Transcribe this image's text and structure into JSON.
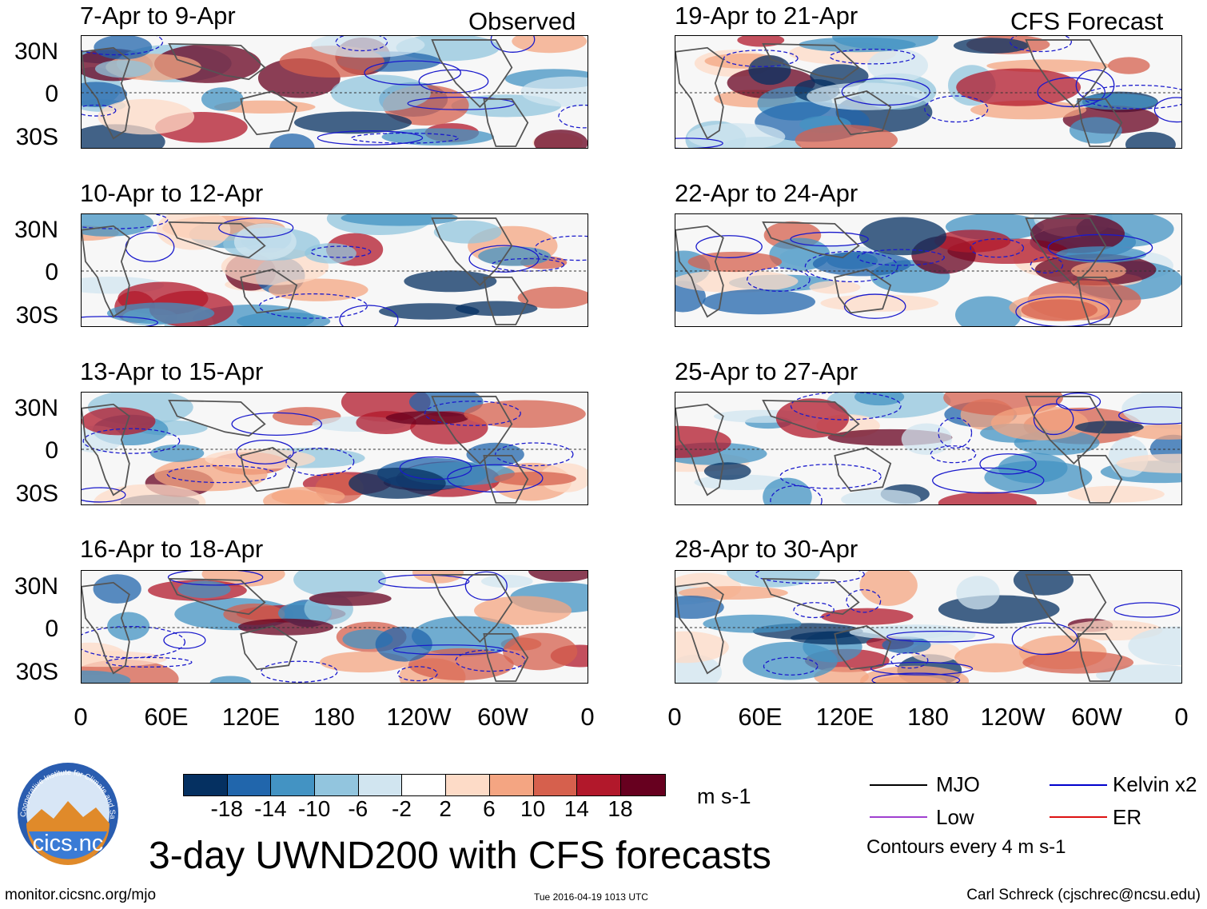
{
  "panels": {
    "observed_label": "Observed",
    "forecast_label": "CFS Forecast",
    "left": [
      {
        "title": "7-Apr to 9-Apr"
      },
      {
        "title": "10-Apr to 12-Apr"
      },
      {
        "title": "13-Apr to 15-Apr"
      },
      {
        "title": "16-Apr to 18-Apr"
      }
    ],
    "right": [
      {
        "title": "19-Apr to 21-Apr"
      },
      {
        "title": "22-Apr to 24-Apr"
      },
      {
        "title": "25-Apr to 27-Apr"
      },
      {
        "title": "28-Apr to 30-Apr"
      }
    ]
  },
  "axes": {
    "lat_labels": [
      "30N",
      "0",
      "30S"
    ],
    "lon_labels": [
      "0",
      "60E",
      "120E",
      "180",
      "120W",
      "60W",
      "0"
    ]
  },
  "colorbar": {
    "colors": [
      "#053061",
      "#2166ac",
      "#4393c3",
      "#92c5de",
      "#d1e5f0",
      "#ffffff",
      "#fddbc7",
      "#f4a582",
      "#d6604d",
      "#b2182b",
      "#67001f"
    ],
    "ticks": [
      "-18",
      "-14",
      "-10",
      "-6",
      "-2",
      "2",
      "6",
      "10",
      "14",
      "18"
    ],
    "unit": "m s-1"
  },
  "title": "3-day UWND200 with CFS forecasts",
  "legend": {
    "items": [
      {
        "label": "MJO",
        "color": "#000000"
      },
      {
        "label": "Kelvin x2",
        "color": "#0000cc"
      },
      {
        "label": "Low",
        "color": "#a040d0"
      },
      {
        "label": "ER",
        "color": "#dd1111"
      }
    ],
    "note": "Contours every 4 m s-1"
  },
  "logo": {
    "text": "cics.nc",
    "ring_text": "Cooperative Institute for Climate and Satellites"
  },
  "footer": {
    "url": "monitor.cicsnc.org/mjo",
    "timestamp": "Tue 2016-04-19 1013 UTC",
    "credit": "Carl Schreck (cjschrec@ncsu.edu)"
  }
}
